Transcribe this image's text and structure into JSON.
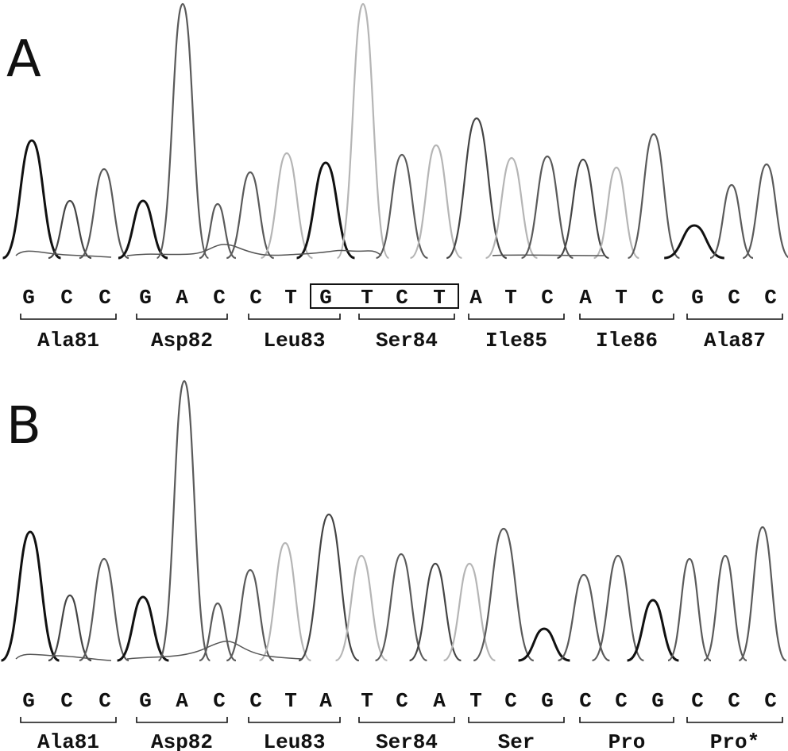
{
  "panels": [
    {
      "letter": "A",
      "bases": [
        "G",
        "C",
        "C",
        "G",
        "A",
        "C",
        "C",
        "T",
        "G",
        "T",
        "C",
        "T",
        "A",
        "T",
        "C",
        "A",
        "T",
        "C",
        "G",
        "C",
        "C"
      ],
      "codons": [
        "Ala81",
        "Asp82",
        "Leu83",
        "Ser84",
        "Ile85",
        "Ile86",
        "Ala87"
      ],
      "boxed_bases": "GTCT",
      "trace_colors": {
        "G": "#111111",
        "A": "#444444",
        "T": "#5a5a5a",
        "C": "#b5b5b5"
      }
    },
    {
      "letter": "B",
      "bases": [
        "G",
        "C",
        "C",
        "G",
        "A",
        "C",
        "C",
        "T",
        "A",
        "T",
        "C",
        "A",
        "T",
        "C",
        "G",
        "C",
        "C",
        "G",
        "C",
        "C",
        "C"
      ],
      "codons": [
        "Ala81",
        "Asp82",
        "Leu83",
        "Ser84",
        "Ser",
        "Pro",
        "Pro*"
      ],
      "trace_colors": {
        "G": "#111111",
        "A": "#444444",
        "T": "#5a5a5a",
        "C": "#b5b5b5"
      }
    }
  ]
}
